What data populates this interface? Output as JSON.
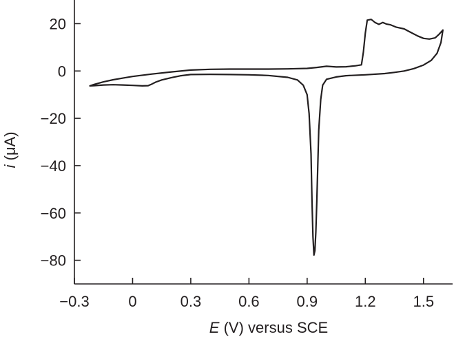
{
  "chart_data": {
    "type": "line",
    "title": "",
    "xlabel_var": "E",
    "xlabel_rest": " (V) versus SCE",
    "ylabel_var": "i",
    "ylabel_rest": " (μA)",
    "xlim": [
      -0.3,
      1.65
    ],
    "ylim": [
      -90,
      30
    ],
    "xticks": [
      -0.3,
      0,
      0.3,
      0.6,
      0.9,
      1.2,
      1.5
    ],
    "xtick_labels": [
      "−0.3",
      "0",
      "0.3",
      "0.6",
      "0.9",
      "1.2",
      "1.5"
    ],
    "yticks": [
      -80,
      -60,
      -40,
      -20,
      0,
      20
    ],
    "ytick_labels": [
      "−80",
      "−60",
      "−40",
      "−20",
      "0",
      "20"
    ],
    "grid": false,
    "series": [
      {
        "points": [
          [
            -0.22,
            -6.3
          ],
          [
            -0.2,
            -5.7
          ],
          [
            -0.15,
            -4.6
          ],
          [
            -0.1,
            -3.7
          ],
          [
            -0.05,
            -3.0
          ],
          [
            0.0,
            -2.3
          ],
          [
            0.1,
            -1.3
          ],
          [
            0.2,
            -0.4
          ],
          [
            0.3,
            0.4
          ],
          [
            0.4,
            0.7
          ],
          [
            0.5,
            0.8
          ],
          [
            0.6,
            0.8
          ],
          [
            0.7,
            0.8
          ],
          [
            0.8,
            0.9
          ],
          [
            0.9,
            1.1
          ],
          [
            0.95,
            1.5
          ],
          [
            1.0,
            2.0
          ],
          [
            1.05,
            1.7
          ],
          [
            1.1,
            1.8
          ],
          [
            1.15,
            2.2
          ],
          [
            1.18,
            2.6
          ],
          [
            1.19,
            8.0
          ],
          [
            1.2,
            16.0
          ],
          [
            1.21,
            21.5
          ],
          [
            1.23,
            21.8
          ],
          [
            1.25,
            20.5
          ],
          [
            1.27,
            19.7
          ],
          [
            1.29,
            20.5
          ],
          [
            1.31,
            19.8
          ],
          [
            1.33,
            19.5
          ],
          [
            1.36,
            18.5
          ],
          [
            1.4,
            17.8
          ],
          [
            1.43,
            16.5
          ],
          [
            1.47,
            14.8
          ],
          [
            1.5,
            13.8
          ],
          [
            1.53,
            13.5
          ],
          [
            1.56,
            14.0
          ],
          [
            1.58,
            15.5
          ],
          [
            1.6,
            17.3
          ],
          [
            1.59,
            12.0
          ],
          [
            1.57,
            7.5
          ],
          [
            1.54,
            4.5
          ],
          [
            1.5,
            2.5
          ],
          [
            1.45,
            1.0
          ],
          [
            1.4,
            0.0
          ],
          [
            1.35,
            -0.6
          ],
          [
            1.3,
            -1.1
          ],
          [
            1.2,
            -1.6
          ],
          [
            1.1,
            -2.0
          ],
          [
            1.05,
            -2.5
          ],
          [
            1.0,
            -3.5
          ],
          [
            0.98,
            -6.0
          ],
          [
            0.97,
            -12.0
          ],
          [
            0.96,
            -25.0
          ],
          [
            0.955,
            -40.0
          ],
          [
            0.95,
            -55.0
          ],
          [
            0.945,
            -68.0
          ],
          [
            0.94,
            -76.0
          ],
          [
            0.935,
            -77.8
          ],
          [
            0.93,
            -70.0
          ],
          [
            0.925,
            -55.0
          ],
          [
            0.92,
            -35.0
          ],
          [
            0.91,
            -18.0
          ],
          [
            0.9,
            -10.0
          ],
          [
            0.88,
            -6.0
          ],
          [
            0.85,
            -3.8
          ],
          [
            0.8,
            -2.7
          ],
          [
            0.7,
            -1.9
          ],
          [
            0.6,
            -1.6
          ],
          [
            0.5,
            -1.5
          ],
          [
            0.4,
            -1.4
          ],
          [
            0.3,
            -1.5
          ],
          [
            0.25,
            -2.0
          ],
          [
            0.2,
            -2.8
          ],
          [
            0.15,
            -3.8
          ],
          [
            0.12,
            -4.7
          ],
          [
            0.1,
            -5.5
          ],
          [
            0.08,
            -6.2
          ],
          [
            0.05,
            -6.3
          ],
          [
            0.0,
            -6.1
          ],
          [
            -0.05,
            -5.9
          ],
          [
            -0.1,
            -5.8
          ],
          [
            -0.15,
            -5.9
          ],
          [
            -0.2,
            -6.2
          ],
          [
            -0.22,
            -6.3
          ]
        ]
      }
    ]
  }
}
